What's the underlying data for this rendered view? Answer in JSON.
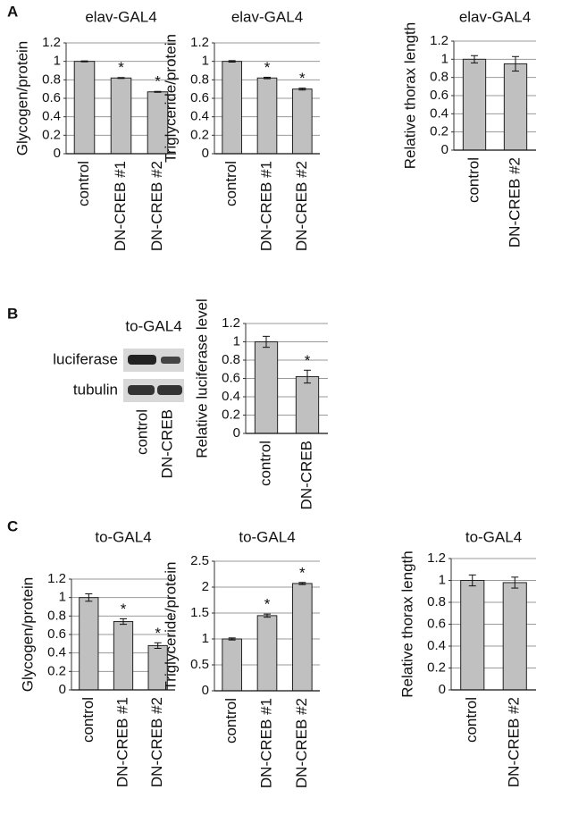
{
  "panels": [
    "A",
    "B",
    "C"
  ],
  "blot": {
    "title": "to-GAL4",
    "rows": [
      "luciferase",
      "tubulin"
    ],
    "lanes": [
      "control",
      "DN-CREB"
    ]
  },
  "chart_data": [
    {
      "type": "bar",
      "title": "elav-GAL4",
      "y_label": "Glycogen/protein",
      "categories": [
        "control",
        "DN-CREB #1",
        "DN-CREB #2"
      ],
      "values": [
        1,
        0.82,
        0.67
      ],
      "errors": [
        0.005,
        0.005,
        0.005
      ],
      "significance": [
        null,
        "*",
        "*"
      ],
      "ylim": [
        0,
        1.2
      ],
      "yticks": [
        0,
        0.2,
        0.4,
        0.6,
        0.8,
        1,
        1.2
      ],
      "grid": true,
      "color": "#c0c0c0"
    },
    {
      "type": "bar",
      "title": "elav-GAL4",
      "y_label": "Triglyceride/protein",
      "categories": [
        "control",
        "DN-CREB #1",
        "DN-CREB #2"
      ],
      "values": [
        1,
        0.82,
        0.7
      ],
      "errors": [
        0.008,
        0.008,
        0.01
      ],
      "significance": [
        null,
        "*",
        "*"
      ],
      "ylim": [
        0,
        1.2
      ],
      "yticks": [
        0,
        0.2,
        0.4,
        0.6,
        0.8,
        1,
        1.2
      ],
      "grid": true,
      "color": "#c0c0c0"
    },
    {
      "type": "bar",
      "title": "elav-GAL4",
      "y_label": "Relative thorax length",
      "categories": [
        "control",
        "DN-CREB #2"
      ],
      "values": [
        1,
        0.95
      ],
      "errors": [
        0.04,
        0.08
      ],
      "significance": [
        null,
        null
      ],
      "ylim": [
        0,
        1.2
      ],
      "yticks": [
        0,
        0.2,
        0.4,
        0.6,
        0.8,
        1,
        1.2
      ],
      "grid": true,
      "color": "#c0c0c0"
    },
    {
      "type": "bar",
      "y_label": "Relative luciferase level",
      "categories": [
        "control",
        "DN-CREB"
      ],
      "values": [
        1,
        0.62
      ],
      "errors": [
        0.06,
        0.07
      ],
      "significance": [
        null,
        "*"
      ],
      "ylim": [
        0,
        1.2
      ],
      "yticks": [
        0,
        0.2,
        0.4,
        0.6,
        0.8,
        1,
        1.2
      ],
      "grid": true,
      "color": "#c0c0c0"
    },
    {
      "type": "bar",
      "title": "to-GAL4",
      "y_label": "Glycogen/protein",
      "categories": [
        "control",
        "DN-CREB #1",
        "DN-CREB #2"
      ],
      "values": [
        1,
        0.74,
        0.48
      ],
      "errors": [
        0.04,
        0.03,
        0.03
      ],
      "significance": [
        null,
        "*",
        "*"
      ],
      "ylim": [
        0,
        1.2
      ],
      "yticks": [
        0,
        0.2,
        0.4,
        0.6,
        0.8,
        1,
        1.2
      ],
      "grid": true,
      "color": "#c0c0c0"
    },
    {
      "type": "bar",
      "title": "to-GAL4",
      "y_label": "Triglyceride/protein",
      "categories": [
        "control",
        "DN-CREB #1",
        "DN-CREB #2"
      ],
      "values": [
        1,
        1.45,
        2.07
      ],
      "errors": [
        0.02,
        0.03,
        0.02
      ],
      "significance": [
        null,
        "*",
        "*"
      ],
      "ylim": [
        0,
        2.5
      ],
      "yticks": [
        0,
        0.5,
        1,
        1.5,
        2,
        2.5
      ],
      "grid": true,
      "color": "#c0c0c0"
    },
    {
      "type": "bar",
      "title": "to-GAL4",
      "y_label": "Relative thorax length",
      "categories": [
        "control",
        "DN-CREB #2"
      ],
      "values": [
        1,
        0.98
      ],
      "errors": [
        0.05,
        0.05
      ],
      "significance": [
        null,
        null
      ],
      "ylim": [
        0,
        1.2
      ],
      "yticks": [
        0,
        0.2,
        0.4,
        0.6,
        0.8,
        1,
        1.2
      ],
      "grid": true,
      "color": "#c0c0c0"
    }
  ]
}
